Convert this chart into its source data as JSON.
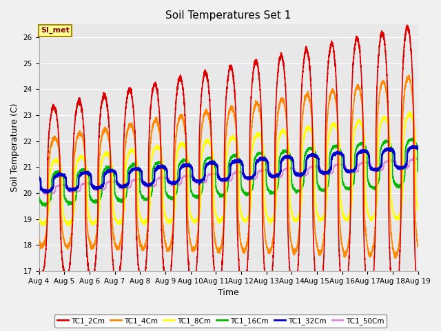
{
  "title": "Soil Temperatures Set 1",
  "xlabel": "Time",
  "ylabel": "Soil Temperature (C)",
  "ylim": [
    17.0,
    26.5
  ],
  "yticks": [
    17.0,
    18.0,
    19.0,
    20.0,
    21.0,
    22.0,
    23.0,
    24.0,
    25.0,
    26.0
  ],
  "xtick_labels": [
    "Aug 4",
    "Aug 5",
    "Aug 6",
    "Aug 7",
    "Aug 8",
    "Aug 9",
    "Aug 10",
    "Aug 11",
    "Aug 12",
    "Aug 13",
    "Aug 14",
    "Aug 15",
    "Aug 16",
    "Aug 17",
    "Aug 18",
    "Aug 19"
  ],
  "series_order": [
    "TC1_2Cm",
    "TC1_4Cm",
    "TC1_8Cm",
    "TC1_16Cm",
    "TC1_32Cm",
    "TC1_50Cm"
  ],
  "series": {
    "TC1_2Cm": {
      "color": "#dd0000",
      "lw": 1.2
    },
    "TC1_4Cm": {
      "color": "#ff8800",
      "lw": 1.2
    },
    "TC1_8Cm": {
      "color": "#ffff00",
      "lw": 1.2
    },
    "TC1_16Cm": {
      "color": "#00bb00",
      "lw": 1.2
    },
    "TC1_32Cm": {
      "color": "#0000cc",
      "lw": 1.8
    },
    "TC1_50Cm": {
      "color": "#dd88dd",
      "lw": 1.2
    }
  },
  "legend_label": "SI_met",
  "legend_bg": "#ffff99",
  "legend_border": "#aa8800",
  "plot_bg": "#e8e8e8",
  "fig_bg": "#f0f0f0",
  "title_fontsize": 11,
  "axis_label_fontsize": 9,
  "tick_fontsize": 7.5,
  "grid_color": "#ffffff",
  "grid_lw": 0.8
}
